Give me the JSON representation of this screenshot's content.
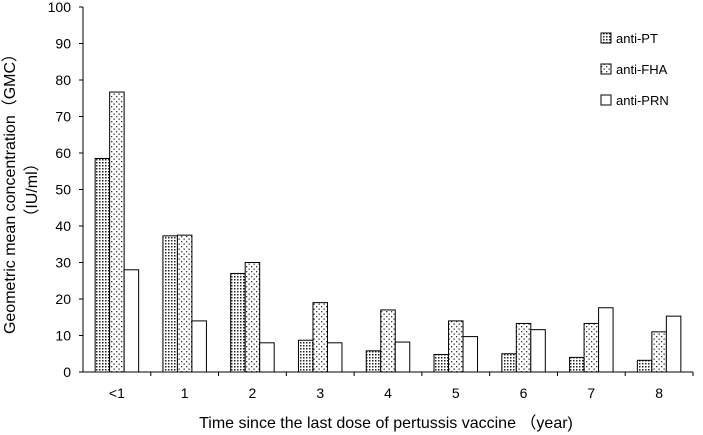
{
  "chart_data": {
    "type": "bar",
    "xlabel": "Time since the last dose of pertussis vaccine （year)",
    "ylabel": "Geometric mean concentration（GMC）",
    "ylabel_unit": "（IU/ml）",
    "ylim": [
      0,
      100
    ],
    "yticks": [
      "0",
      "10",
      "20",
      "30",
      "40",
      "50",
      "60",
      "70",
      "80",
      "90",
      "100"
    ],
    "categories": [
      "<1",
      "1",
      "2",
      "3",
      "4",
      "5",
      "6",
      "7",
      "8"
    ],
    "series": [
      {
        "name": "anti-PT",
        "pattern": "dense-dots",
        "values": [
          58.5,
          37.3,
          27.0,
          8.7,
          5.8,
          4.8,
          5.0,
          4.0,
          3.2
        ]
      },
      {
        "name": "anti-FHA",
        "pattern": "sparse-dots",
        "values": [
          76.7,
          37.5,
          30.0,
          19.0,
          17.0,
          14.0,
          13.3,
          13.3,
          11.0
        ]
      },
      {
        "name": "anti-PRN",
        "pattern": "none",
        "values": [
          28.0,
          14.0,
          8.0,
          8.0,
          8.2,
          9.7,
          11.6,
          17.6,
          15.3
        ]
      }
    ],
    "legend_position": "top-right",
    "grid": false
  }
}
